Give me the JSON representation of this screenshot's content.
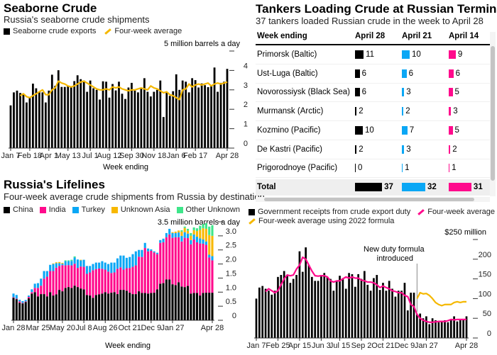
{
  "colors": {
    "black": "#000000",
    "yellow": "#f5b800",
    "pink": "#ff0a8c",
    "blue": "#0aa7f5",
    "gold": "#f8b800",
    "green": "#3ee68a",
    "gray": "#888888"
  },
  "chart_data": [
    {
      "type": "bar",
      "title": "Seaborne Crude",
      "subtitle": "Russia's seaborne crude shipments",
      "unit_label": "5 million barrels a day",
      "xlabel": "Week ending",
      "ylim": [
        0,
        5
      ],
      "yticks": [
        0,
        1,
        2,
        3,
        4,
        5
      ],
      "ytick_labels": [
        "0",
        "1",
        "2",
        "3",
        "4",
        ""
      ],
      "xtick_labels": [
        [
          "Jan 7",
          0
        ],
        [
          "Feb 18",
          6
        ],
        [
          "Apr 1",
          12
        ],
        [
          "May 13",
          18
        ],
        [
          "Jul 1",
          25
        ],
        [
          "Aug 12",
          31
        ],
        [
          "Sep 30",
          38
        ],
        [
          "Nov 18",
          45
        ],
        [
          "Jan 6",
          52
        ],
        [
          "Feb 17",
          58
        ],
        [
          "Apr 28",
          68
        ]
      ],
      "series": [
        {
          "name": "Seaborne crude exports",
          "type": "bar",
          "values": [
            2.2,
            2.87,
            2.96,
            2.84,
            2.78,
            2.35,
            2.63,
            3.32,
            3.08,
            2.9,
            2.87,
            2.35,
            2.96,
            3.78,
            3.21,
            4.01,
            3.15,
            3.15,
            3.21,
            3.15,
            3.45,
            3.75,
            3.55,
            3.48,
            2.9,
            3.48,
            3.08,
            3.0,
            2.5,
            3.44,
            3.42,
            2.6,
            3.3,
            2.97,
            3.42,
            2.8,
            2.53,
            3.12,
            3.36,
            2.96,
            2.87,
            3.12,
            3.6,
            2.9,
            2.66,
            2.9,
            3.0,
            3.48,
            1.6,
            2.9,
            2.69,
            2.93,
            3.8,
            3.0,
            3.48,
            3.42,
            2.87,
            3.6,
            3.5,
            3.12,
            3.33,
            3.24,
            3.14,
            3.2,
            4.15,
            2.9,
            3.36,
            3.42,
            4.08
          ]
        },
        {
          "name": "Four-week average",
          "type": "line",
          "start_index": 3,
          "values": [
            2.7,
            2.8,
            2.65,
            2.6,
            2.7,
            2.8,
            2.9,
            3.0,
            2.75,
            2.75,
            3.0,
            3.1,
            3.45,
            3.35,
            3.3,
            3.2,
            3.15,
            3.2,
            3.3,
            3.4,
            3.45,
            3.35,
            3.25,
            3.15,
            3.05,
            3.0,
            3.0,
            3.05,
            3.0,
            3.15,
            3.1,
            3.15,
            3.05,
            3.0,
            2.95,
            3.0,
            3.0,
            3.05,
            3.1,
            3.05,
            3.0,
            3.2,
            3.1,
            3.05,
            2.95,
            2.85,
            2.9,
            2.75,
            2.7,
            2.6,
            2.5,
            3.0,
            3.05,
            3.3,
            3.15,
            3.25,
            3.3,
            3.25,
            3.3,
            3.35,
            3.2,
            3.3,
            3.35,
            3.3,
            3.35,
            3.4
          ]
        }
      ]
    },
    {
      "type": "bar",
      "stacked": true,
      "title": "Russia's Lifelines",
      "subtitle": "Four-week average crude shipments from Russia by destination",
      "unit_label": "3.5 million barrels a day",
      "xlabel": "Week ending",
      "ylim": [
        0,
        3.5
      ],
      "yticks": [
        0,
        0.5,
        1,
        1.5,
        2,
        2.5,
        3,
        3.5
      ],
      "ytick_labels": [
        "0",
        "0.5",
        "1.0",
        "1.5",
        "2.0",
        "2.5",
        "3.0",
        ""
      ],
      "xtick_labels": [
        [
          "Jan 28",
          0
        ],
        [
          "Mar 25",
          8
        ],
        [
          "May 20",
          16
        ],
        [
          "Jul 8",
          23
        ],
        [
          "Aug 26",
          30
        ],
        [
          "Oct 21",
          38
        ],
        [
          "Dec 9",
          45
        ],
        [
          "Jan 27",
          52
        ],
        [
          "Apr 28",
          65
        ]
      ],
      "series": [
        {
          "name": "China",
          "values": [
            0.8,
            0.75,
            0.62,
            0.6,
            0.65,
            0.78,
            0.95,
            1.0,
            0.85,
            0.93,
            0.93,
            0.85,
            1.0,
            0.88,
            0.92,
            1.08,
            1.03,
            1.15,
            1.18,
            1.15,
            1.23,
            1.18,
            1.13,
            1.1,
            0.9,
            0.88,
            0.8,
            0.9,
            0.92,
            0.95,
            1.0,
            0.95,
            0.98,
            1.0,
            0.93,
            1.08,
            1.08,
            1.05,
            0.98,
            0.93,
            0.93,
            1.03,
            0.97,
            0.97,
            0.95,
            0.97,
            0.98,
            1.1,
            1.3,
            1.32,
            1.45,
            1.45,
            1.28,
            1.25,
            1.35,
            1.2,
            1.18,
            1.22,
            0.95,
            0.97,
            0.97,
            0.88,
            0.97,
            0.98,
            0.98,
            0.98
          ]
        },
        {
          "name": "India",
          "values": [
            0.02,
            0.02,
            0.05,
            0.02,
            0.02,
            0.05,
            0.05,
            0.15,
            0.3,
            0.3,
            0.55,
            0.7,
            0.75,
            0.87,
            0.95,
            0.85,
            0.93,
            0.8,
            0.78,
            0.8,
            0.78,
            0.68,
            0.78,
            0.8,
            0.75,
            0.82,
            0.98,
            0.92,
            0.92,
            0.88,
            0.8,
            0.78,
            0.7,
            0.7,
            0.9,
            0.8,
            0.72,
            0.8,
            0.88,
            0.97,
            1.02,
            1.23,
            1.28,
            1.6,
            1.5,
            1.5,
            1.43,
            1.25,
            1.45,
            1.45,
            1.5,
            1.6,
            1.65,
            1.7,
            1.6,
            1.6,
            1.75,
            1.7,
            1.75,
            1.9,
            1.8,
            1.85,
            1.75,
            1.7,
            1.25,
            1.15
          ]
        },
        {
          "name": "Turkey",
          "values": [
            0.13,
            0.13,
            0.06,
            0.06,
            0.05,
            0.05,
            0.1,
            0.15,
            0.17,
            0.25,
            0.27,
            0.2,
            0.22,
            0.25,
            0.16,
            0.1,
            0.05,
            0.15,
            0.14,
            0.16,
            0.22,
            0.3,
            0.22,
            0.25,
            0.28,
            0.23,
            0.22,
            0.23,
            0.21,
            0.27,
            0.25,
            0.27,
            0.37,
            0.35,
            0.37,
            0.42,
            0.5,
            0.37,
            0.39,
            0.45,
            0.5,
            0.24,
            0.25,
            0.18,
            0.1,
            0.05,
            0.04,
            0.05,
            0.1,
            0.13,
            0.15,
            0.2,
            0.17,
            0.15,
            0.17,
            0.2,
            0.2,
            0.16,
            0.15,
            0.18,
            0.2,
            0.18,
            0.15,
            0.12,
            0.1,
            0.15
          ]
        },
        {
          "name": "Unknown Asia",
          "values": [
            0,
            0,
            0,
            0,
            0,
            0,
            0,
            0,
            0,
            0,
            0,
            0,
            0,
            0.02,
            0.03,
            0.04,
            0.03,
            0,
            0,
            0,
            0,
            0,
            0.02,
            0,
            0,
            0,
            0,
            0,
            0,
            0,
            0,
            0,
            0,
            0,
            0,
            0,
            0,
            0,
            0,
            0,
            0,
            0,
            0,
            0,
            0,
            0,
            0,
            0,
            0,
            0,
            0,
            0,
            0.03,
            0.05,
            0.07,
            0.15,
            0.15,
            0.1,
            0.15,
            0.15,
            0.2,
            0.3,
            0.4,
            0.45,
            0.7,
            0.72
          ]
        },
        {
          "name": "Other Unknown",
          "values": [
            0,
            0,
            0,
            0,
            0,
            0,
            0,
            0,
            0,
            0,
            0,
            0,
            0,
            0,
            0,
            0,
            0,
            0.03,
            0.03,
            0.04,
            0.04,
            0,
            0,
            0,
            0,
            0,
            0,
            0,
            0,
            0,
            0,
            0,
            0,
            0,
            0,
            0,
            0,
            0,
            0,
            0,
            0,
            0,
            0,
            0,
            0,
            0,
            0,
            0,
            0,
            0,
            0,
            0,
            0,
            0,
            0,
            0.05,
            0.05,
            0.07,
            0.1,
            0.1,
            0.1,
            0.15,
            0.15,
            0.2,
            0.3,
            0.38
          ]
        }
      ]
    },
    {
      "type": "bar",
      "title": "",
      "unit_label": "$250 million",
      "ylim": [
        0,
        250
      ],
      "yticks": [
        0,
        50,
        100,
        150,
        200,
        250
      ],
      "ytick_labels": [
        "0",
        "50",
        "100",
        "150",
        "200",
        ""
      ],
      "xtick_labels": [
        [
          "Jan 7",
          0
        ],
        [
          "Feb 25",
          7
        ],
        [
          "Apr 15",
          14
        ],
        [
          "Jun 3",
          21
        ],
        [
          "Jul 15",
          27
        ],
        [
          "Sep 2",
          34
        ],
        [
          "Oct 21",
          41
        ],
        [
          "Dec 9",
          48
        ],
        [
          "Jan 27",
          55
        ],
        [
          "Apr 28",
          68
        ]
      ],
      "annotation": {
        "text_line1": "New duty formula",
        "text_line2": "introduced",
        "at_index": 52
      },
      "series": [
        {
          "name": "Government receipts from crude export duty",
          "type": "bar",
          "values": [
            100,
            128,
            132,
            125,
            120,
            110,
            120,
            155,
            160,
            170,
            160,
            140,
            150,
            160,
            220,
            168,
            230,
            185,
            155,
            145,
            145,
            160,
            165,
            155,
            150,
            120,
            145,
            158,
            152,
            125,
            165,
            162,
            130,
            162,
            150,
            170,
            135,
            120,
            152,
            160,
            122,
            140,
            120,
            145,
            125,
            105,
            120,
            120,
            140,
            70,
            115,
            115,
            60,
            62,
            50,
            55,
            35,
            50,
            45,
            40,
            42,
            45,
            40,
            45,
            55,
            42,
            45,
            45,
            55
          ]
        },
        {
          "name": "Four-week average",
          "type": "line",
          "start_index": 3,
          "values": [
            118,
            125,
            120,
            115,
            120,
            135,
            150,
            160,
            158,
            160,
            175,
            185,
            205,
            200,
            185,
            170,
            158,
            157,
            158,
            158,
            155,
            145,
            142,
            145,
            145,
            150,
            155,
            152,
            155,
            152,
            152,
            147,
            145,
            142,
            142,
            140,
            135,
            128,
            132,
            128,
            125,
            120,
            118,
            115,
            115,
            108,
            105,
            85,
            80,
            60,
            50,
            45,
            42,
            40,
            40,
            41,
            42,
            42,
            42,
            44,
            47,
            46,
            47,
            47,
            47,
            47
          ]
        },
        {
          "name": "Four-week average using 2022 formula",
          "type": "line",
          "start_index": 52,
          "values": [
            100,
            115,
            112,
            113,
            108,
            100,
            90,
            85,
            82,
            85,
            85,
            85,
            90,
            92,
            90,
            92,
            92
          ]
        }
      ]
    }
  ],
  "table": {
    "title": "Tankers Loading Crude at Russian Terminals",
    "subtitle": "37 tankers loaded Russian crude in the week to April 28",
    "header": [
      "Week ending",
      "April 28",
      "April 21",
      "April 14"
    ],
    "rows": [
      [
        "Primorsk (Baltic)",
        11,
        10,
        9
      ],
      [
        "Ust-Luga (Baltic)",
        6,
        6,
        6
      ],
      [
        "Novorossiysk (Black Sea)",
        6,
        3,
        5
      ],
      [
        "Murmansk (Arctic)",
        2,
        2,
        3
      ],
      [
        "Kozmino (Pacific)",
        10,
        7,
        5
      ],
      [
        "De Kastri (Pacific)",
        2,
        3,
        2
      ],
      [
        "Prigorodnoye (Pacific)",
        0,
        1,
        1
      ]
    ],
    "total": [
      "Total",
      37,
      32,
      31
    ]
  }
}
